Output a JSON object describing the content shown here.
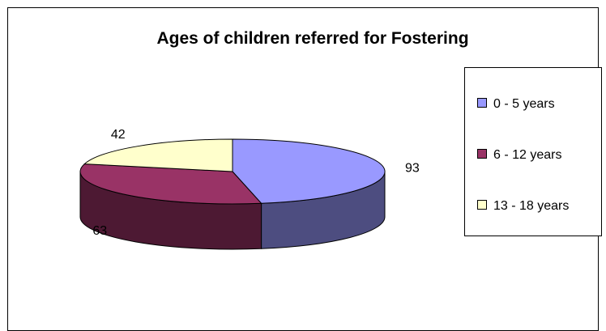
{
  "chart_data": {
    "type": "pie",
    "variant": "3d",
    "title": "Ages of children referred for Fostering",
    "categories": [
      "0 - 5 years",
      "6 - 12 years",
      "13 - 18 years"
    ],
    "values": [
      93,
      63,
      42
    ],
    "data_labels": [
      "93",
      "63",
      "42"
    ],
    "legend_position": "right",
    "colors": [
      "#9999ff",
      "#993366",
      "#ffffcc"
    ],
    "side_colors": [
      "#4d4d80",
      "#4d1933",
      "#808066"
    ]
  }
}
